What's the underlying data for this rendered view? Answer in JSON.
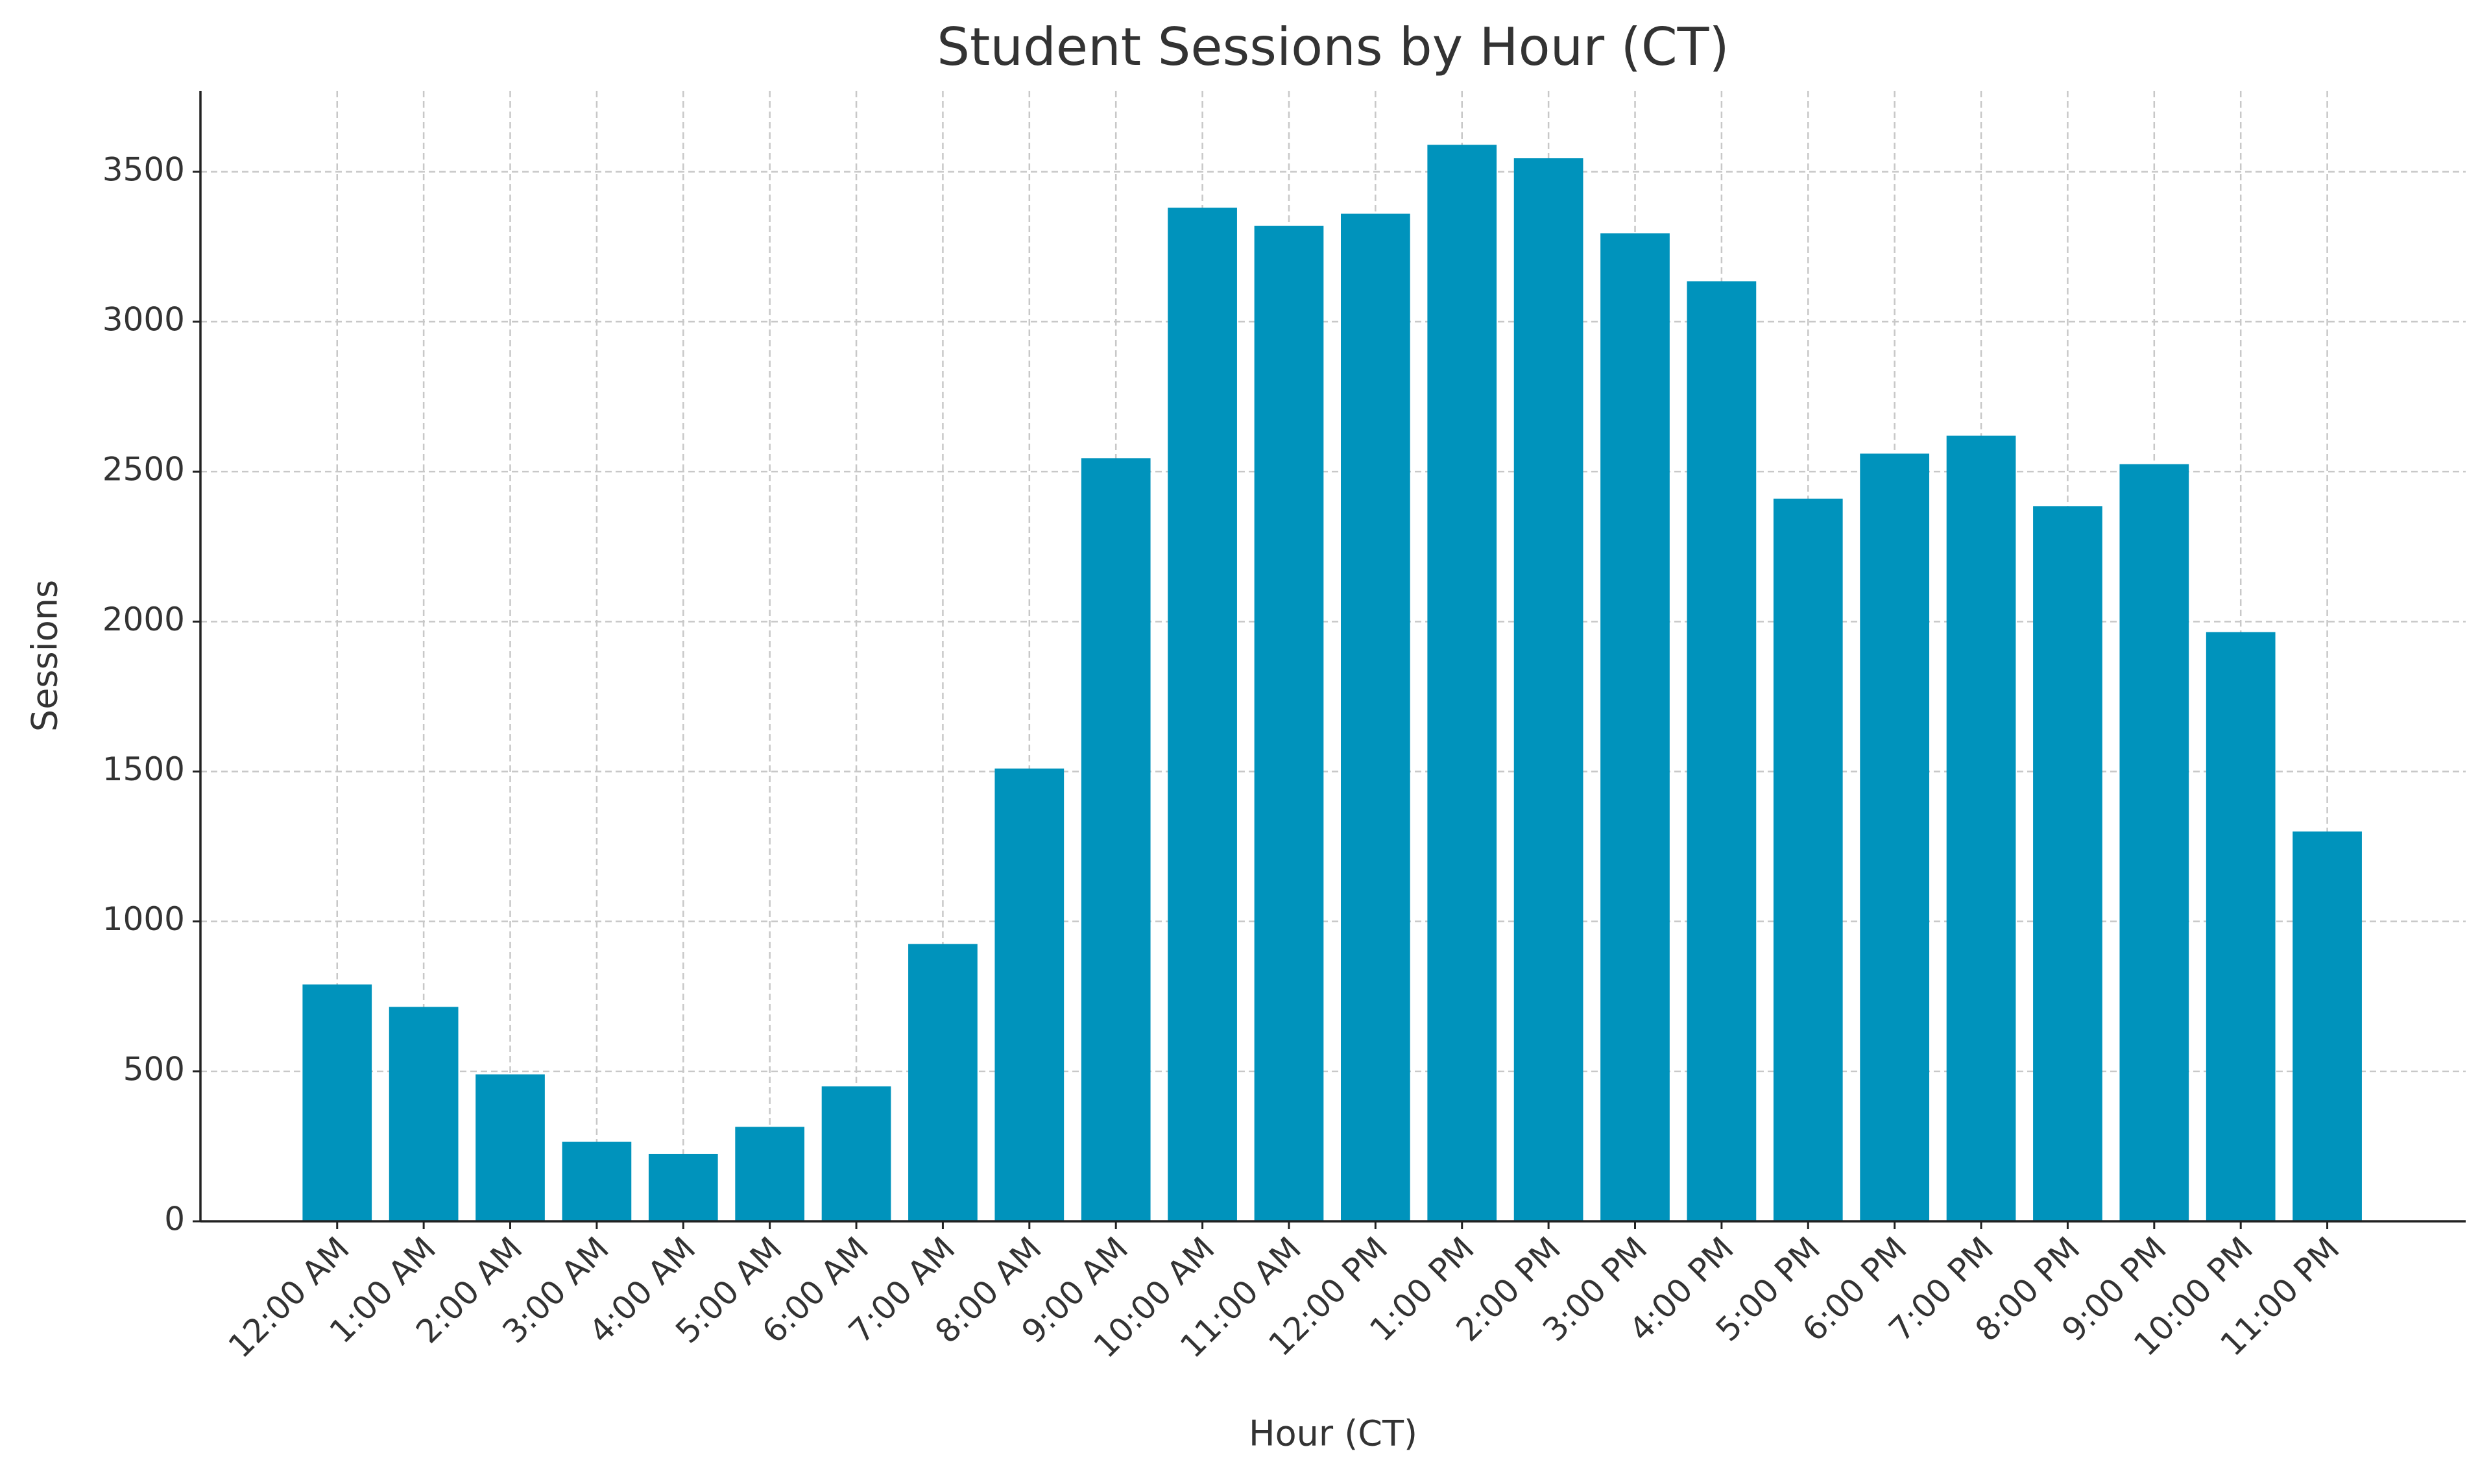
{
  "chart_data": {
    "type": "bar",
    "title": "Student Sessions by Hour (CT)",
    "x_label": "Hour (CT)",
    "y_label": "Sessions",
    "categories": [
      "12:00 AM",
      "1:00 AM",
      "2:00 AM",
      "3:00 AM",
      "4:00 AM",
      "5:00 AM",
      "6:00 AM",
      "7:00 AM",
      "8:00 AM",
      "9:00 AM",
      "10:00 AM",
      "11:00 AM",
      "12:00 PM",
      "1:00 PM",
      "2:00 PM",
      "3:00 PM",
      "4:00 PM",
      "5:00 PM",
      "6:00 PM",
      "7:00 PM",
      "8:00 PM",
      "9:00 PM",
      "10:00 PM",
      "11:00 PM"
    ],
    "values": [
      790,
      715,
      490,
      265,
      225,
      315,
      450,
      925,
      1510,
      2545,
      3380,
      3320,
      3360,
      3590,
      3545,
      3295,
      3135,
      2410,
      2560,
      2620,
      2385,
      2525,
      1965,
      1300
    ],
    "color": "#0093bc",
    "ylim": [
      0,
      3770
    ],
    "yticks": [
      0,
      500,
      1000,
      1500,
      2000,
      2500,
      3000,
      3500
    ],
    "grid": true
  }
}
